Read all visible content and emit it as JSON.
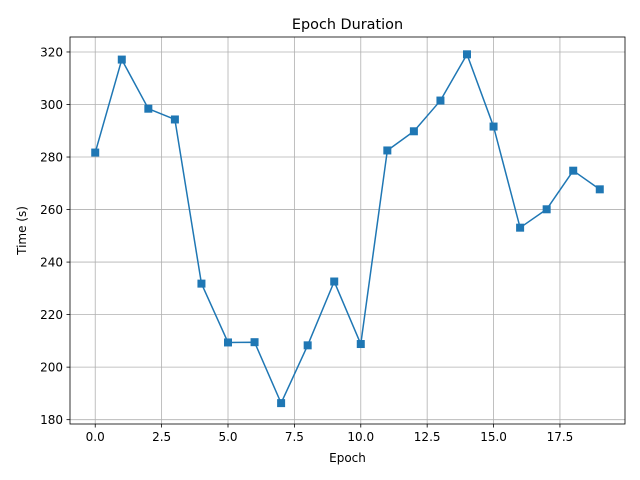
{
  "chart_data": {
    "type": "line",
    "title": "Epoch Duration",
    "xlabel": "Epoch",
    "ylabel": "Time (s)",
    "x": [
      0,
      1,
      2,
      3,
      4,
      5,
      6,
      7,
      8,
      9,
      10,
      11,
      12,
      13,
      14,
      15,
      16,
      17,
      18,
      19
    ],
    "series": [
      {
        "values": [
          281.7,
          317.1,
          298.4,
          294.3,
          231.8,
          209.4,
          209.5,
          186.3,
          208.3,
          232.6,
          208.8,
          282.5,
          289.8,
          301.5,
          319.1,
          291.6,
          253.1,
          260.1,
          274.8,
          267.7
        ],
        "color": "#1f77b4",
        "marker": "square"
      }
    ],
    "xlim": [
      -0.95,
      19.95
    ],
    "ylim": [
      178.35,
      325.7
    ],
    "xticks": [
      0.0,
      2.5,
      5.0,
      7.5,
      10.0,
      12.5,
      15.0,
      17.5
    ],
    "xtick_labels": [
      "0.0",
      "2.5",
      "5.0",
      "7.5",
      "10.0",
      "12.5",
      "15.0",
      "17.5"
    ],
    "yticks": [
      180,
      200,
      220,
      240,
      260,
      280,
      300,
      320
    ],
    "ytick_labels": [
      "180",
      "200",
      "220",
      "240",
      "260",
      "280",
      "300",
      "320"
    ],
    "grid": true
  }
}
